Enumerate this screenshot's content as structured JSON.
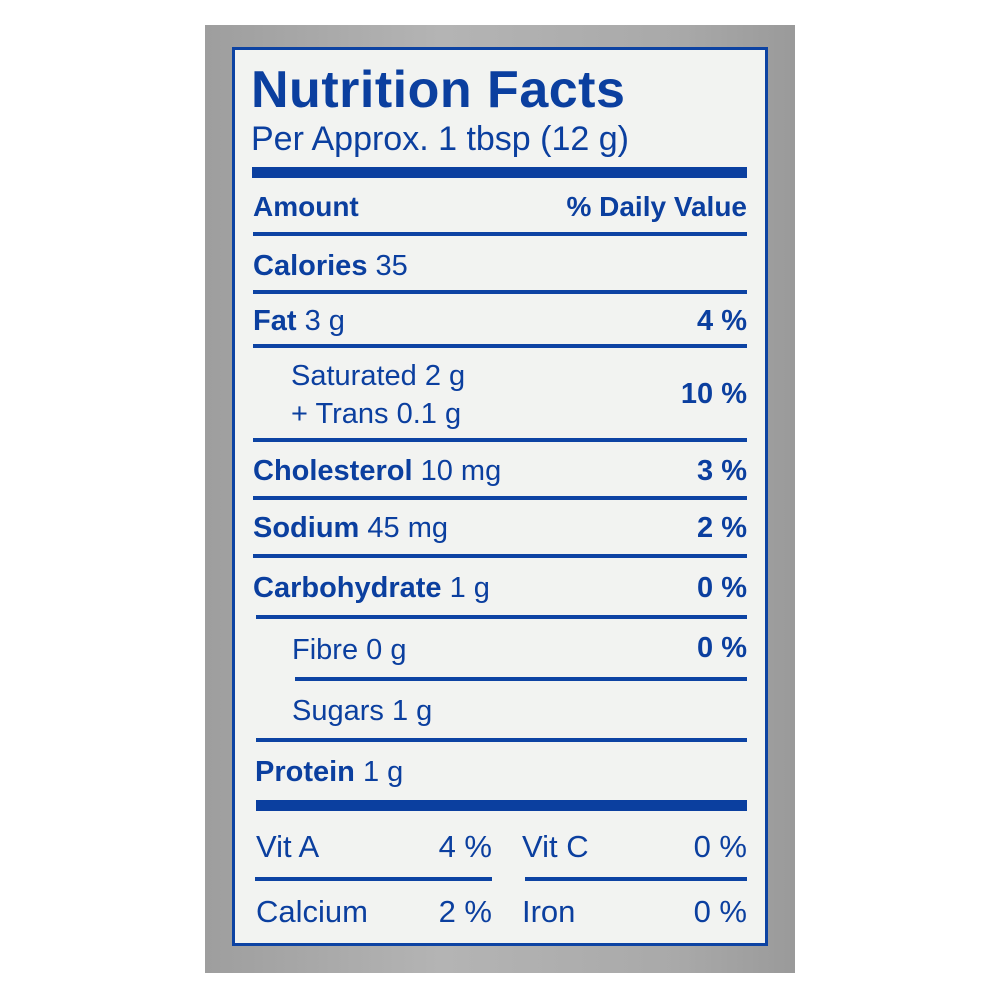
{
  "label": {
    "title": "Nutrition Facts",
    "serving": "Per Approx. 1 tbsp (12 g)",
    "header_amount": "Amount",
    "header_dv": "% Daily Value",
    "calories_label": "Calories",
    "calories_value": "35",
    "rows": [
      {
        "name": "Fat",
        "amount": "3 g",
        "dv": "4 %"
      },
      {
        "name": "Saturated",
        "amount": "2 g",
        "name2": "+ Trans",
        "amount2": "0.1 g",
        "dv": "10 %"
      },
      {
        "name": "Cholesterol",
        "amount": "10 mg",
        "dv": "3 %"
      },
      {
        "name": "Sodium",
        "amount": "45 mg",
        "dv": "2 %"
      },
      {
        "name": "Carbohydrate",
        "amount": "1 g",
        "dv": "0 %"
      },
      {
        "name": "Fibre",
        "amount": "0 g",
        "dv": "0 %"
      },
      {
        "name": "Sugars",
        "amount": "1 g"
      },
      {
        "name": "Protein",
        "amount": "1 g"
      }
    ],
    "vitamins": [
      {
        "name": "Vit A",
        "dv": "4 %"
      },
      {
        "name": "Vit C",
        "dv": "0 %"
      },
      {
        "name": "Calcium",
        "dv": "2 %"
      },
      {
        "name": "Iron",
        "dv": "0 %"
      }
    ],
    "colors": {
      "ink": "#0b3f9f",
      "label_bg": "#f2f3f1",
      "package": "#a9a9a9"
    }
  }
}
